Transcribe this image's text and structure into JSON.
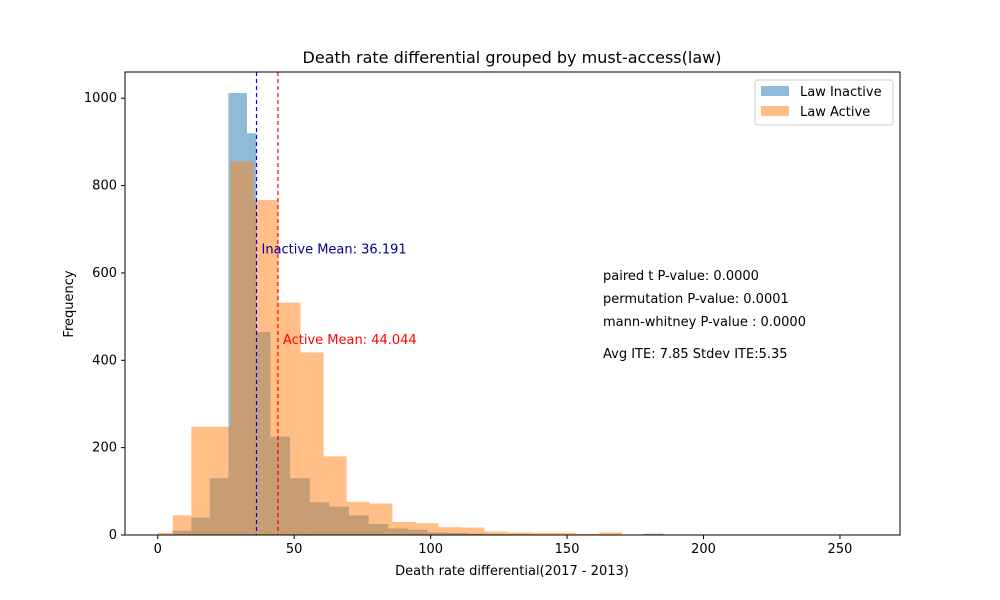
{
  "chart_data": {
    "type": "histogram",
    "title": "Death rate differential grouped by must-access(law)",
    "xlabel": "Death rate differential(2017 - 2013)",
    "ylabel": "Frequency",
    "xlim": [
      -12,
      272
    ],
    "ylim": [
      0,
      1060
    ],
    "xticks": [
      0,
      50,
      100,
      150,
      200,
      250
    ],
    "yticks": [
      0,
      200,
      400,
      600,
      800,
      1000
    ],
    "grid": false,
    "legend_position": "top-right",
    "series": [
      {
        "name": "Law Inactive",
        "color": "#1f77b4",
        "alpha": 0.5,
        "bin_edges": [
          5.5,
          12.3,
          19.1,
          25.9,
          32.7,
          36.1,
          41.3,
          48.5,
          55.7,
          62.9,
          70.1,
          77.3,
          84.5,
          91.7,
          98.9,
          106.1,
          113.3,
          120.5,
          127.7,
          134.9,
          142.1,
          149.3,
          156.5,
          163.7,
          170.9,
          178.1,
          185.3,
          194.0
        ],
        "counts": [
          10,
          40,
          130,
          1012,
          920,
          465,
          225,
          130,
          75,
          65,
          45,
          25,
          15,
          12,
          6,
          5,
          3,
          2,
          2,
          1,
          1,
          1,
          1,
          1,
          1,
          3,
          1
        ]
      },
      {
        "name": "Law Active",
        "color": "#ff7f0e",
        "alpha": 0.5,
        "bin_edges": [
          0,
          5.5,
          12.3,
          18.4,
          26.6,
          35.1,
          44.3,
          52.3,
          60.8,
          69.2,
          77.6,
          86.0,
          94.5,
          102.9,
          111.3,
          119.7,
          128.1,
          136.6,
          145.0,
          153.4,
          161.8,
          170.2
        ],
        "counts": [
          5,
          45,
          248,
          248,
          855,
          767,
          532,
          418,
          180,
          76,
          72,
          30,
          27,
          18,
          17,
          8,
          6,
          5,
          5,
          3,
          6
        ]
      }
    ],
    "mean_lines": [
      {
        "label": "Inactive Mean: 36.191",
        "x": 36.191,
        "color": "#0000ff",
        "text_color": "#00008b",
        "text_y": 645
      },
      {
        "label": "Active Mean: 44.044",
        "x": 44.044,
        "color": "#ff0000",
        "text_color": "#ff0000",
        "text_y": 437
      }
    ],
    "annotations": [
      {
        "text": "paired t P-value: 0.0000"
      },
      {
        "text": "permutation P-value: 0.0001"
      },
      {
        "text": "mann-whitney P-value : 0.0000"
      },
      {
        "text": "Avg ITE: 7.85 Stdev ITE:5.35"
      }
    ]
  }
}
